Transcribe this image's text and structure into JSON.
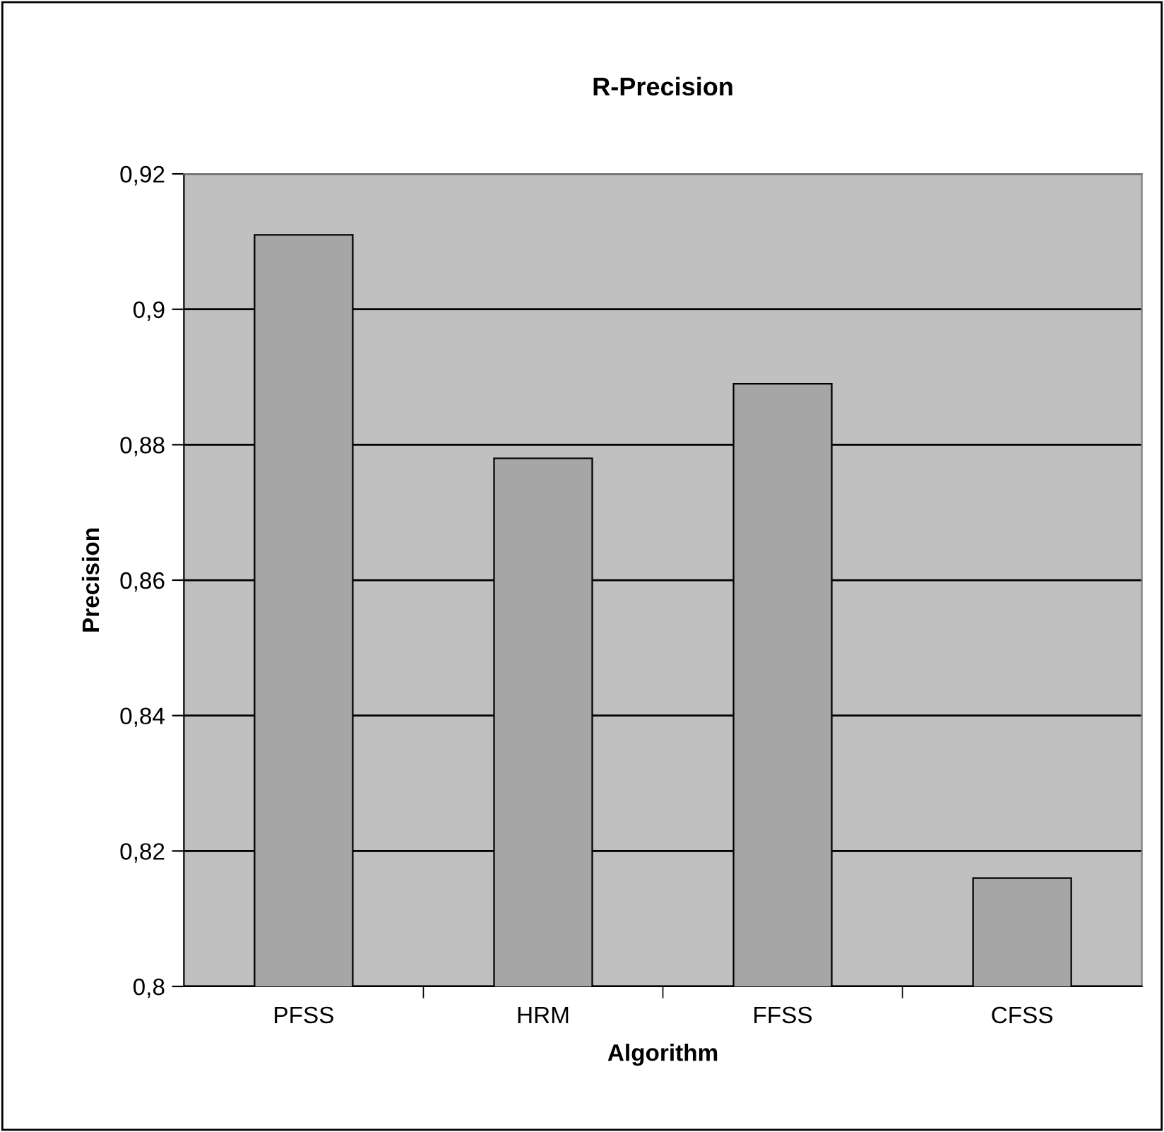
{
  "chart_data": {
    "type": "bar",
    "title": "R-Precision",
    "xlabel": "Algorithm",
    "ylabel": "Precision",
    "categories": [
      "PFSS",
      "HRM",
      "FFSS",
      "CFSS"
    ],
    "values": [
      0.911,
      0.878,
      0.889,
      0.816
    ],
    "color": "#a6a6a6",
    "ylim": [
      0.8,
      0.92
    ],
    "yticks": [
      {
        "value": 0.8,
        "label": "0,8"
      },
      {
        "value": 0.82,
        "label": "0,82"
      },
      {
        "value": 0.84,
        "label": "0,84"
      },
      {
        "value": 0.86,
        "label": "0,86"
      },
      {
        "value": 0.88,
        "label": "0,88"
      },
      {
        "value": 0.9,
        "label": "0,9"
      },
      {
        "value": 0.92,
        "label": "0,92"
      }
    ],
    "grid": "y",
    "legend": false
  }
}
